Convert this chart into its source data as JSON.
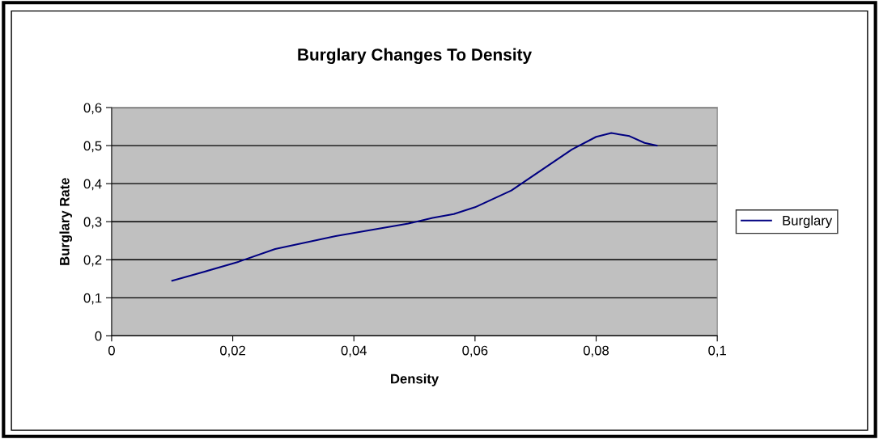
{
  "chart_data": {
    "type": "line",
    "title": "Burglary Changes To Density",
    "xlabel": "Density",
    "ylabel": "Burglary Rate",
    "x": [
      0.01,
      0.015,
      0.021,
      0.027,
      0.037,
      0.049,
      0.053,
      0.0565,
      0.06,
      0.066,
      0.076,
      0.08,
      0.0825,
      0.0855,
      0.088,
      0.09
    ],
    "series": [
      {
        "name": "Burglary",
        "color": "#000080",
        "values": [
          0.145,
          0.167,
          0.195,
          0.228,
          0.262,
          0.295,
          0.31,
          0.32,
          0.338,
          0.382,
          0.49,
          0.523,
          0.533,
          0.525,
          0.507,
          0.5
        ]
      }
    ],
    "xlim": [
      0,
      0.1
    ],
    "xticks": [
      0,
      {
        "value": 0.02,
        "label": "0,02"
      },
      {
        "value": 0.04,
        "label": "0,04"
      },
      {
        "value": 0.06,
        "label": "0,06"
      },
      {
        "value": 0.08,
        "label": "0,08"
      },
      {
        "value": 0.1,
        "label": "0,1"
      }
    ],
    "ylim": [
      0,
      0.6
    ],
    "yticks": [
      0,
      {
        "value": 0.1,
        "label": "0,1"
      },
      {
        "value": 0.2,
        "label": "0,2"
      },
      {
        "value": 0.3,
        "label": "0,3"
      },
      {
        "value": 0.4,
        "label": "0,4"
      },
      {
        "value": 0.5,
        "label": "0,5"
      },
      {
        "value": 0.6,
        "label": "0,6"
      }
    ],
    "grid": "y",
    "legend": "right",
    "marker": "none",
    "line_style": "solid"
  }
}
